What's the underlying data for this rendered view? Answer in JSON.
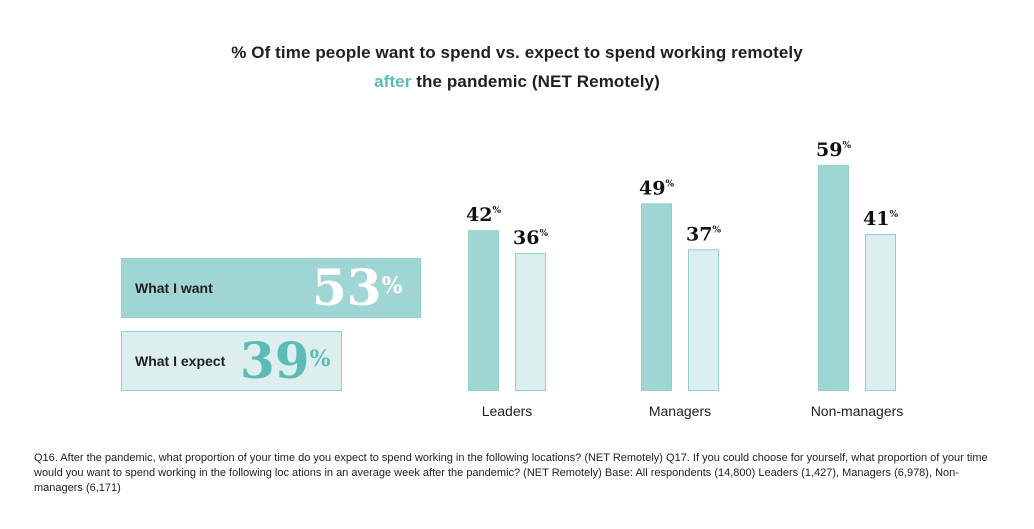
{
  "title": {
    "line1": "% Of time people want to spend vs. expect to spend working remotely",
    "line2_accent": "after",
    "line2_rest": " the pandemic (NET Remotely)"
  },
  "summary": {
    "want": {
      "label": "What I want",
      "value": "53",
      "unit": "%"
    },
    "expect": {
      "label": "What I expect",
      "value": "39",
      "unit": "%"
    }
  },
  "chart_data": {
    "type": "bar",
    "title": "% Of time people want to spend vs. expect to spend working remotely after the pandemic (NET Remotely)",
    "categories": [
      "Leaders",
      "Managers",
      "Non-managers"
    ],
    "series": [
      {
        "name": "What I want",
        "values": [
          42,
          49,
          59
        ]
      },
      {
        "name": "What I expect",
        "values": [
          36,
          37,
          41
        ]
      }
    ],
    "unit": "%",
    "ylim": [
      0,
      60
    ],
    "xlabel": "",
    "ylabel": "",
    "grid": false
  },
  "colors": {
    "want": "#9fd6d3",
    "expect": "#dcefee",
    "border": "#8fd0cc",
    "accent": "#5dbbb6"
  },
  "footnote": "Q16. After the pandemic, what proportion of your time do you expect to spend working in the following locations? (NET Remotely) Q17. If you could choose for yourself, what proportion of your time would you want to spend working in the following loc ations in an average week after the pandemic? (NET Remotely) Base: All respondents (14,800) Leaders (1,427), Managers (6,978), Non-managers (6,171)"
}
